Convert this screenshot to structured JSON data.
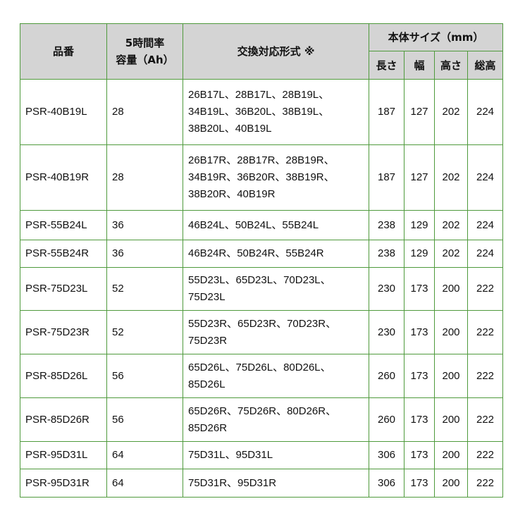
{
  "header": {
    "part_number": "品番",
    "capacity_line1": "5時間率",
    "capacity_line2": "容量（Ah）",
    "compatible": "交換対応形式 ※",
    "size_group": "本体サイズ（mm）",
    "length": "長さ",
    "width": "幅",
    "height": "高さ",
    "total_height": "総高"
  },
  "rows": [
    {
      "part": "PSR-40B19L",
      "cap": "28",
      "compat": [
        "26B17L、28B17L、28B19L、",
        "34B19L、36B20L、38B19L、",
        "38B20L、40B19L"
      ],
      "l": "187",
      "w": "127",
      "h": "202",
      "th": "224"
    },
    {
      "part": "PSR-40B19R",
      "cap": "28",
      "compat": [
        "26B17R、28B17R、28B19R、",
        "34B19R、36B20R、38B19R、",
        "38B20R、40B19R"
      ],
      "l": "187",
      "w": "127",
      "h": "202",
      "th": "224"
    },
    {
      "part": "PSR-55B24L",
      "cap": "36",
      "compat": [
        "46B24L、50B24L、55B24L"
      ],
      "l": "238",
      "w": "129",
      "h": "202",
      "th": "224"
    },
    {
      "part": "PSR-55B24R",
      "cap": "36",
      "compat": [
        "46B24R、50B24R、55B24R"
      ],
      "l": "238",
      "w": "129",
      "h": "202",
      "th": "224"
    },
    {
      "part": "PSR-75D23L",
      "cap": "52",
      "compat": [
        "55D23L、65D23L、70D23L、",
        "75D23L"
      ],
      "l": "230",
      "w": "173",
      "h": "200",
      "th": "222"
    },
    {
      "part": "PSR-75D23R",
      "cap": "52",
      "compat": [
        "55D23R、65D23R、70D23R、",
        "75D23R"
      ],
      "l": "230",
      "w": "173",
      "h": "200",
      "th": "222"
    },
    {
      "part": "PSR-85D26L",
      "cap": "56",
      "compat": [
        "65D26L、75D26L、80D26L、",
        "85D26L"
      ],
      "l": "260",
      "w": "173",
      "h": "200",
      "th": "222"
    },
    {
      "part": "PSR-85D26R",
      "cap": "56",
      "compat": [
        "65D26R、75D26R、80D26R、",
        "85D26R"
      ],
      "l": "260",
      "w": "173",
      "h": "200",
      "th": "222"
    },
    {
      "part": "PSR-95D31L",
      "cap": "64",
      "compat": [
        "75D31L、95D31L"
      ],
      "l": "306",
      "w": "173",
      "h": "200",
      "th": "222"
    },
    {
      "part": "PSR-95D31R",
      "cap": "64",
      "compat": [
        "75D31R、95D31R"
      ],
      "l": "306",
      "w": "173",
      "h": "200",
      "th": "222"
    }
  ]
}
